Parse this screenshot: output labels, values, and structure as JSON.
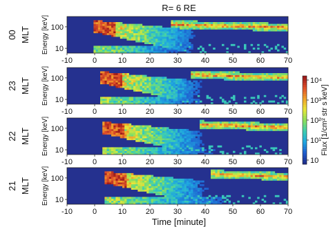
{
  "figure": {
    "title": "R= 6 RE",
    "xlabel": "Time [minute]",
    "colorbar_label": "Flux [1/cm² str s keV]",
    "colorbar_ticks": [
      "10",
      "10¹",
      "10²",
      "10³",
      "10⁴"
    ],
    "colormap": [
      "#1e2d8c",
      "#1f5fd0",
      "#1fa8e0",
      "#3fcfb0",
      "#8ee05a",
      "#e8e83a",
      "#f0a22a",
      "#e0502a",
      "#9c1a1a"
    ],
    "background_color": "#25318f"
  },
  "chart_data": [
    {
      "type": "heatmap",
      "panel_label": "00\nMLT",
      "mlt_label": "00",
      "mlt_unit": "MLT",
      "ylabel": "Energy [keV]",
      "xlim": [
        -10,
        70
      ],
      "xticks": [
        -10,
        0,
        10,
        20,
        30,
        40,
        50,
        60,
        70
      ],
      "ylim": [
        6,
        300
      ],
      "yscale": "log",
      "yticks": [
        10,
        100
      ],
      "injection_time": 0,
      "drift_band": {
        "start_time": 28,
        "end_time": 70,
        "energy_start": 130,
        "energy_end": 95
      }
    },
    {
      "type": "heatmap",
      "mlt_label": "23",
      "mlt_unit": "MLT",
      "ylabel": "Energy [keV]",
      "xlim": [
        -10,
        70
      ],
      "xticks": [
        -10,
        0,
        10,
        20,
        30,
        40,
        50,
        60,
        70
      ],
      "ylim": [
        6,
        300
      ],
      "yscale": "log",
      "yticks": [
        10,
        100
      ],
      "injection_time": 2,
      "drift_band": {
        "start_time": 35,
        "end_time": 70,
        "energy_start": 140,
        "energy_end": 105
      }
    },
    {
      "type": "heatmap",
      "mlt_label": "22",
      "mlt_unit": "MLT",
      "ylabel": "Energy [keV]",
      "xlim": [
        -10,
        70
      ],
      "xticks": [
        -10,
        0,
        10,
        20,
        30,
        40,
        50,
        60,
        70
      ],
      "ylim": [
        6,
        300
      ],
      "yscale": "log",
      "yticks": [
        10,
        100
      ],
      "injection_time": 3,
      "drift_band": {
        "start_time": 38,
        "end_time": 70,
        "energy_start": 150,
        "energy_end": 110
      }
    },
    {
      "type": "heatmap",
      "mlt_label": "21",
      "mlt_unit": "MLT",
      "ylabel": "Energy [keV]",
      "xlim": [
        -10,
        70
      ],
      "xticks": [
        -10,
        0,
        10,
        20,
        30,
        40,
        50,
        60,
        70
      ],
      "ylim": [
        6,
        300
      ],
      "yscale": "log",
      "yticks": [
        10,
        100
      ],
      "injection_time": 4,
      "drift_band": {
        "start_time": 42,
        "end_time": 70,
        "energy_start": 155,
        "energy_end": 115
      }
    }
  ]
}
